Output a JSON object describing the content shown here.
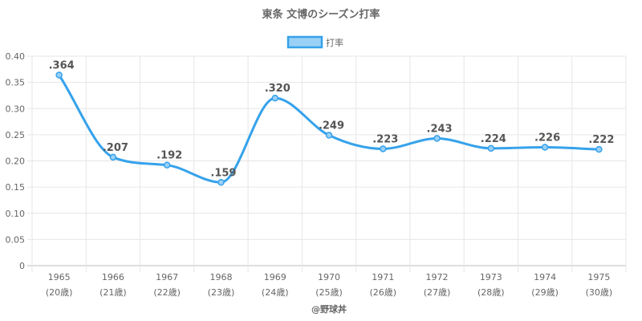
{
  "chart_data": {
    "type": "line",
    "title": "東条 文博のシーズン打率",
    "categories": [
      "1965",
      "1966",
      "1967",
      "1968",
      "1969",
      "1970",
      "1971",
      "1972",
      "1973",
      "1974",
      "1975"
    ],
    "sublabels": [
      "(20歳)",
      "(21歳)",
      "(22歳)",
      "(23歳)",
      "(24歳)",
      "(25歳)",
      "(26歳)",
      "(27歳)",
      "(28歳)",
      "(29歳)",
      "(30歳)"
    ],
    "series": [
      {
        "name": "打率",
        "values": [
          0.364,
          0.207,
          0.192,
          0.159,
          0.32,
          0.249,
          0.223,
          0.243,
          0.224,
          0.226,
          0.222
        ],
        "labels": [
          ".364",
          ".207",
          ".192",
          ".159",
          ".320",
          ".249",
          ".223",
          ".243",
          ".224",
          ".226",
          ".222"
        ]
      }
    ],
    "ylim": [
      0,
      0.4
    ],
    "yticks": [
      "0",
      "0.05",
      "0.10",
      "0.15",
      "0.20",
      "0.25",
      "0.30",
      "0.35",
      "0.40"
    ],
    "grid": true,
    "legend": "top"
  },
  "colors": {
    "line": "#36a2eb",
    "fill": "#9ad0f5",
    "grid": "#e6e6e6"
  },
  "credit": "@野球丼"
}
